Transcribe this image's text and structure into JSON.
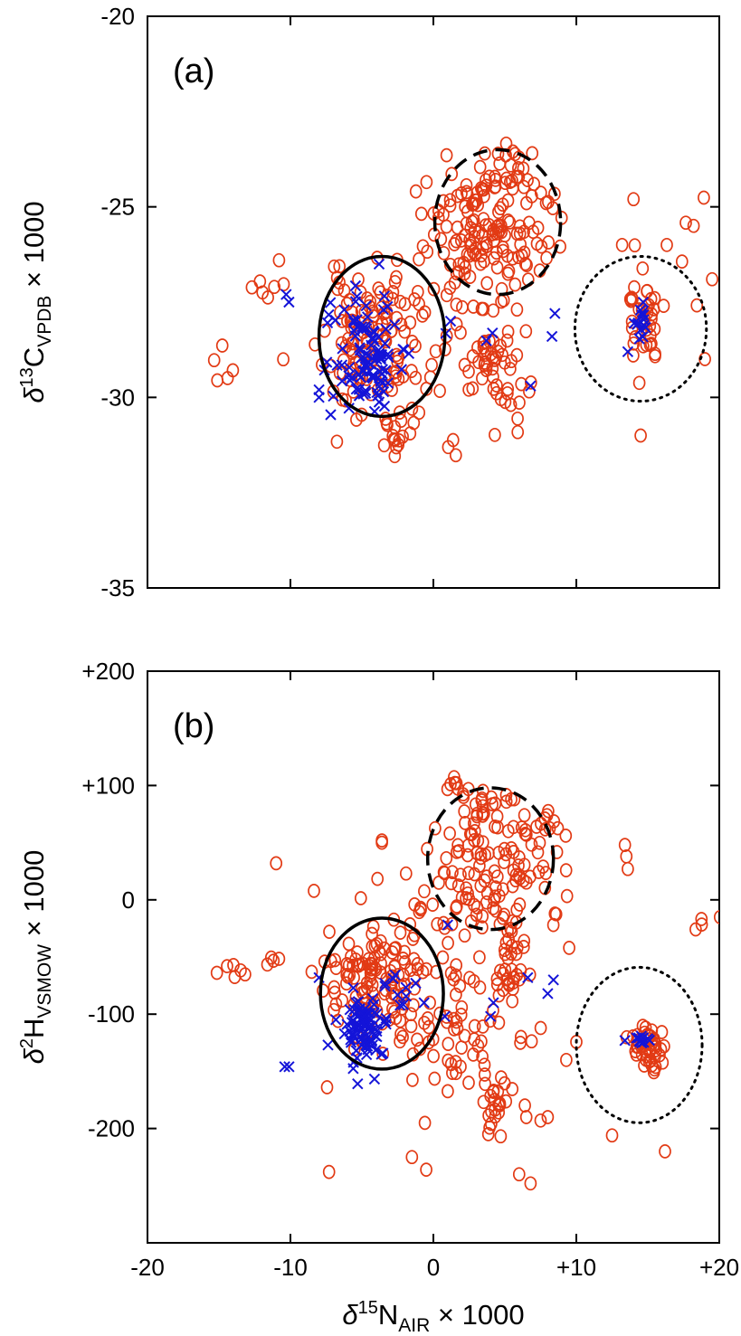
{
  "chart_data": [
    {
      "type": "scatter",
      "panel_label": "(a)",
      "ylabel": {
        "delta": "δ",
        "sup": "13",
        "element": "C",
        "sub": "VPDB",
        "suffix": " × 1000"
      },
      "xlim": [
        -20,
        20
      ],
      "ylim": [
        -35,
        -20
      ],
      "xticks": [
        -20,
        -10,
        0,
        10,
        20
      ],
      "yticks": [
        -20,
        -25,
        -30,
        -35
      ],
      "ytick_labels": [
        "-20",
        "-25",
        "-30",
        "-35"
      ],
      "grid": false,
      "colors": {
        "circles": "#e23a14",
        "crosses": "#1414d8"
      },
      "clusters": {
        "circles": [
          {
            "cx": -4.5,
            "cy": -28.6,
            "sx": 1.6,
            "sy": 0.9,
            "n": 110,
            "seed": 11
          },
          {
            "cx": 3.8,
            "cy": -25.5,
            "sx": 2.2,
            "sy": 0.8,
            "n": 150,
            "seed": 12
          },
          {
            "cx": 5.5,
            "cy": -24.0,
            "sx": 0.6,
            "sy": 0.3,
            "n": 15,
            "seed": 13
          },
          {
            "cx": 14.8,
            "cy": -28.0,
            "sx": 0.6,
            "sy": 0.6,
            "n": 40,
            "seed": 14
          },
          {
            "cx": 4.0,
            "cy": -29.0,
            "sx": 0.9,
            "sy": 0.6,
            "n": 35,
            "seed": 15
          },
          {
            "cx": -2.5,
            "cy": -30.8,
            "sx": 0.6,
            "sy": 0.4,
            "n": 18,
            "seed": 16
          },
          {
            "cx": 0.0,
            "cy": -28.0,
            "sx": 3.0,
            "sy": 1.2,
            "n": 40,
            "seed": 17
          },
          {
            "cx": 6.0,
            "cy": -30.3,
            "sx": 0.9,
            "sy": 0.5,
            "n": 10,
            "seed": 18
          },
          {
            "cx": 18.5,
            "cy": -26.5,
            "sx": 1.0,
            "sy": 1.2,
            "n": 6,
            "seed": 19
          },
          {
            "cx": -11.5,
            "cy": -27.2,
            "sx": 0.8,
            "sy": 0.2,
            "n": 6,
            "seed": 20
          },
          {
            "cx": -14.5,
            "cy": -29.2,
            "sx": 0.5,
            "sy": 0.3,
            "n": 5,
            "seed": 21
          },
          {
            "cx": 1.0,
            "cy": -31.4,
            "sx": 0.5,
            "sy": 0.2,
            "n": 3,
            "seed": 22
          }
        ],
        "crosses": [
          {
            "cx": -4.6,
            "cy": -28.8,
            "sx": 1.0,
            "sy": 0.7,
            "n": 85,
            "seed": 31
          },
          {
            "cx": -3.8,
            "cy": -29.8,
            "sx": 0.3,
            "sy": 0.2,
            "n": 10,
            "seed": 32
          },
          {
            "cx": 14.5,
            "cy": -28.0,
            "sx": 0.3,
            "sy": 0.3,
            "n": 15,
            "seed": 33
          },
          {
            "cx": -7.0,
            "cy": -28.0,
            "sx": 0.6,
            "sy": 0.8,
            "n": 8,
            "seed": 34
          },
          {
            "cx": 4.0,
            "cy": -28.5,
            "sx": 1.0,
            "sy": 0.3,
            "n": 3,
            "seed": 35
          }
        ],
        "points": {
          "circles": [
            [
              -10.8,
              -26.4
            ],
            [
              -10.5,
              -29.0
            ],
            [
              14.0,
              -24.8
            ],
            [
              18.2,
              -25.5
            ],
            [
              19.5,
              -26.9
            ],
            [
              14.5,
              -31.0
            ],
            [
              13.2,
              -26.0
            ]
          ],
          "crosses": [
            [
              -10.3,
              -27.3
            ],
            [
              -10.1,
              -27.5
            ],
            [
              -8.0,
              -29.8
            ],
            [
              -8.0,
              -30.0
            ],
            [
              -3.8,
              -26.5
            ],
            [
              6.8,
              -29.7
            ],
            [
              8.5,
              -27.8
            ],
            [
              8.3,
              -28.4
            ],
            [
              13.6,
              -28.8
            ],
            [
              1.2,
              -28.0
            ]
          ]
        }
      },
      "ellipses": [
        {
          "style": "solid",
          "cx": -3.6,
          "cy": -28.4,
          "rx": 4.4,
          "ry": 2.1
        },
        {
          "style": "dashed",
          "cx": 4.5,
          "cy": -25.4,
          "rx": 4.4,
          "ry": 1.9
        },
        {
          "style": "dotted",
          "cx": 14.5,
          "cy": -28.2,
          "rx": 4.6,
          "ry": 1.9
        }
      ]
    },
    {
      "type": "scatter",
      "panel_label": "(b)",
      "xlabel": {
        "delta": "δ",
        "sup": "15",
        "element": "N",
        "sub": "AIR",
        "suffix": " × 1000"
      },
      "ylabel": {
        "delta": "δ",
        "sup": "2",
        "element": "H",
        "sub": "VSMOW",
        "suffix": " × 1000"
      },
      "xlim": [
        -20,
        20
      ],
      "ylim": [
        -300,
        200
      ],
      "xticks": [
        -20,
        -10,
        0,
        10,
        20
      ],
      "xtick_labels": [
        "-20",
        "-10",
        "0",
        "+10",
        "+20"
      ],
      "yticks": [
        200,
        100,
        0,
        -100,
        -200
      ],
      "ytick_labels": [
        "+200",
        "+100",
        "0",
        "-100",
        "-200"
      ],
      "grid": false,
      "colors": {
        "circles": "#e23a14",
        "crosses": "#1414d8"
      },
      "clusters": {
        "circles": [
          {
            "cx": -4.0,
            "cy": -70,
            "sx": 1.7,
            "sy": 28,
            "n": 120,
            "seed": 41
          },
          {
            "cx": 4.0,
            "cy": 30,
            "sx": 2.2,
            "sy": 30,
            "n": 110,
            "seed": 42
          },
          {
            "cx": 1.5,
            "cy": 98,
            "sx": 0.6,
            "sy": 4,
            "n": 8,
            "seed": 43
          },
          {
            "cx": 4.0,
            "cy": 80,
            "sx": 1.0,
            "sy": 6,
            "n": 12,
            "seed": 44
          },
          {
            "cx": 7.5,
            "cy": 60,
            "sx": 0.8,
            "sy": 8,
            "n": 10,
            "seed": 45
          },
          {
            "cx": 5.5,
            "cy": -50,
            "sx": 0.4,
            "sy": 25,
            "n": 30,
            "seed": 46
          },
          {
            "cx": 3.0,
            "cy": -120,
            "sx": 2.2,
            "sy": 30,
            "n": 55,
            "seed": 47
          },
          {
            "cx": 4.5,
            "cy": -185,
            "sx": 0.5,
            "sy": 12,
            "n": 20,
            "seed": 48
          },
          {
            "cx": 15.0,
            "cy": -130,
            "sx": 0.6,
            "sy": 13,
            "n": 45,
            "seed": 49
          },
          {
            "cx": -14.5,
            "cy": -65,
            "sx": 0.6,
            "sy": 6,
            "n": 6,
            "seed": 50
          },
          {
            "cx": -11.5,
            "cy": -55,
            "sx": 0.4,
            "sy": 3,
            "n": 4,
            "seed": 51
          },
          {
            "cx": 19.0,
            "cy": -20,
            "sx": 0.6,
            "sy": 8,
            "n": 4,
            "seed": 52
          },
          {
            "cx": -2.0,
            "cy": -130,
            "sx": 1.5,
            "sy": 30,
            "n": 15,
            "seed": 53
          },
          {
            "cx": 0.0,
            "cy": -30,
            "sx": 2.5,
            "sy": 35,
            "n": 30,
            "seed": 54
          }
        ],
        "crosses": [
          {
            "cx": -5.0,
            "cy": -110,
            "sx": 0.9,
            "sy": 15,
            "n": 90,
            "seed": 61
          },
          {
            "cx": 14.5,
            "cy": -122,
            "sx": 0.3,
            "sy": 2,
            "n": 14,
            "seed": 62
          },
          {
            "cx": -3.0,
            "cy": -85,
            "sx": 1.2,
            "sy": 8,
            "n": 10,
            "seed": 63
          }
        ],
        "points": {
          "circles": [
            [
              -11.0,
              32
            ],
            [
              -3.6,
              52
            ],
            [
              -3.6,
              50
            ],
            [
              -7.3,
              -238
            ],
            [
              -1.5,
              -225
            ],
            [
              -0.5,
              -236
            ],
            [
              6.0,
              -240
            ],
            [
              6.8,
              -248
            ],
            [
              12.5,
              -206
            ],
            [
              13.4,
              48
            ],
            [
              13.5,
              38
            ],
            [
              13.6,
              27
            ],
            [
              16.2,
              -220
            ],
            [
              9.5,
              -42
            ],
            [
              9.3,
              -140
            ],
            [
              8.5,
              -12
            ],
            [
              7.5,
              -193
            ],
            [
              8.0,
              -190
            ],
            [
              6.5,
              -190
            ]
          ],
          "crosses": [
            [
              -10.4,
              -146
            ],
            [
              -10.1,
              -146
            ],
            [
              -8.0,
              -68
            ],
            [
              0.8,
              -102
            ],
            [
              1.0,
              -22
            ],
            [
              4.0,
              -102
            ],
            [
              4.2,
              -90
            ],
            [
              6.6,
              -68
            ],
            [
              8.0,
              -82
            ],
            [
              8.4,
              -70
            ],
            [
              13.4,
              -123
            ]
          ]
        }
      },
      "ellipses": [
        {
          "style": "solid",
          "cx": -3.6,
          "cy": -82,
          "rx": 4.3,
          "ry": 66
        },
        {
          "style": "dashed",
          "cx": 4.0,
          "cy": 36,
          "rx": 4.4,
          "ry": 62
        },
        {
          "style": "dotted",
          "cx": 14.4,
          "cy": -127,
          "rx": 4.4,
          "ry": 68
        }
      ]
    }
  ]
}
